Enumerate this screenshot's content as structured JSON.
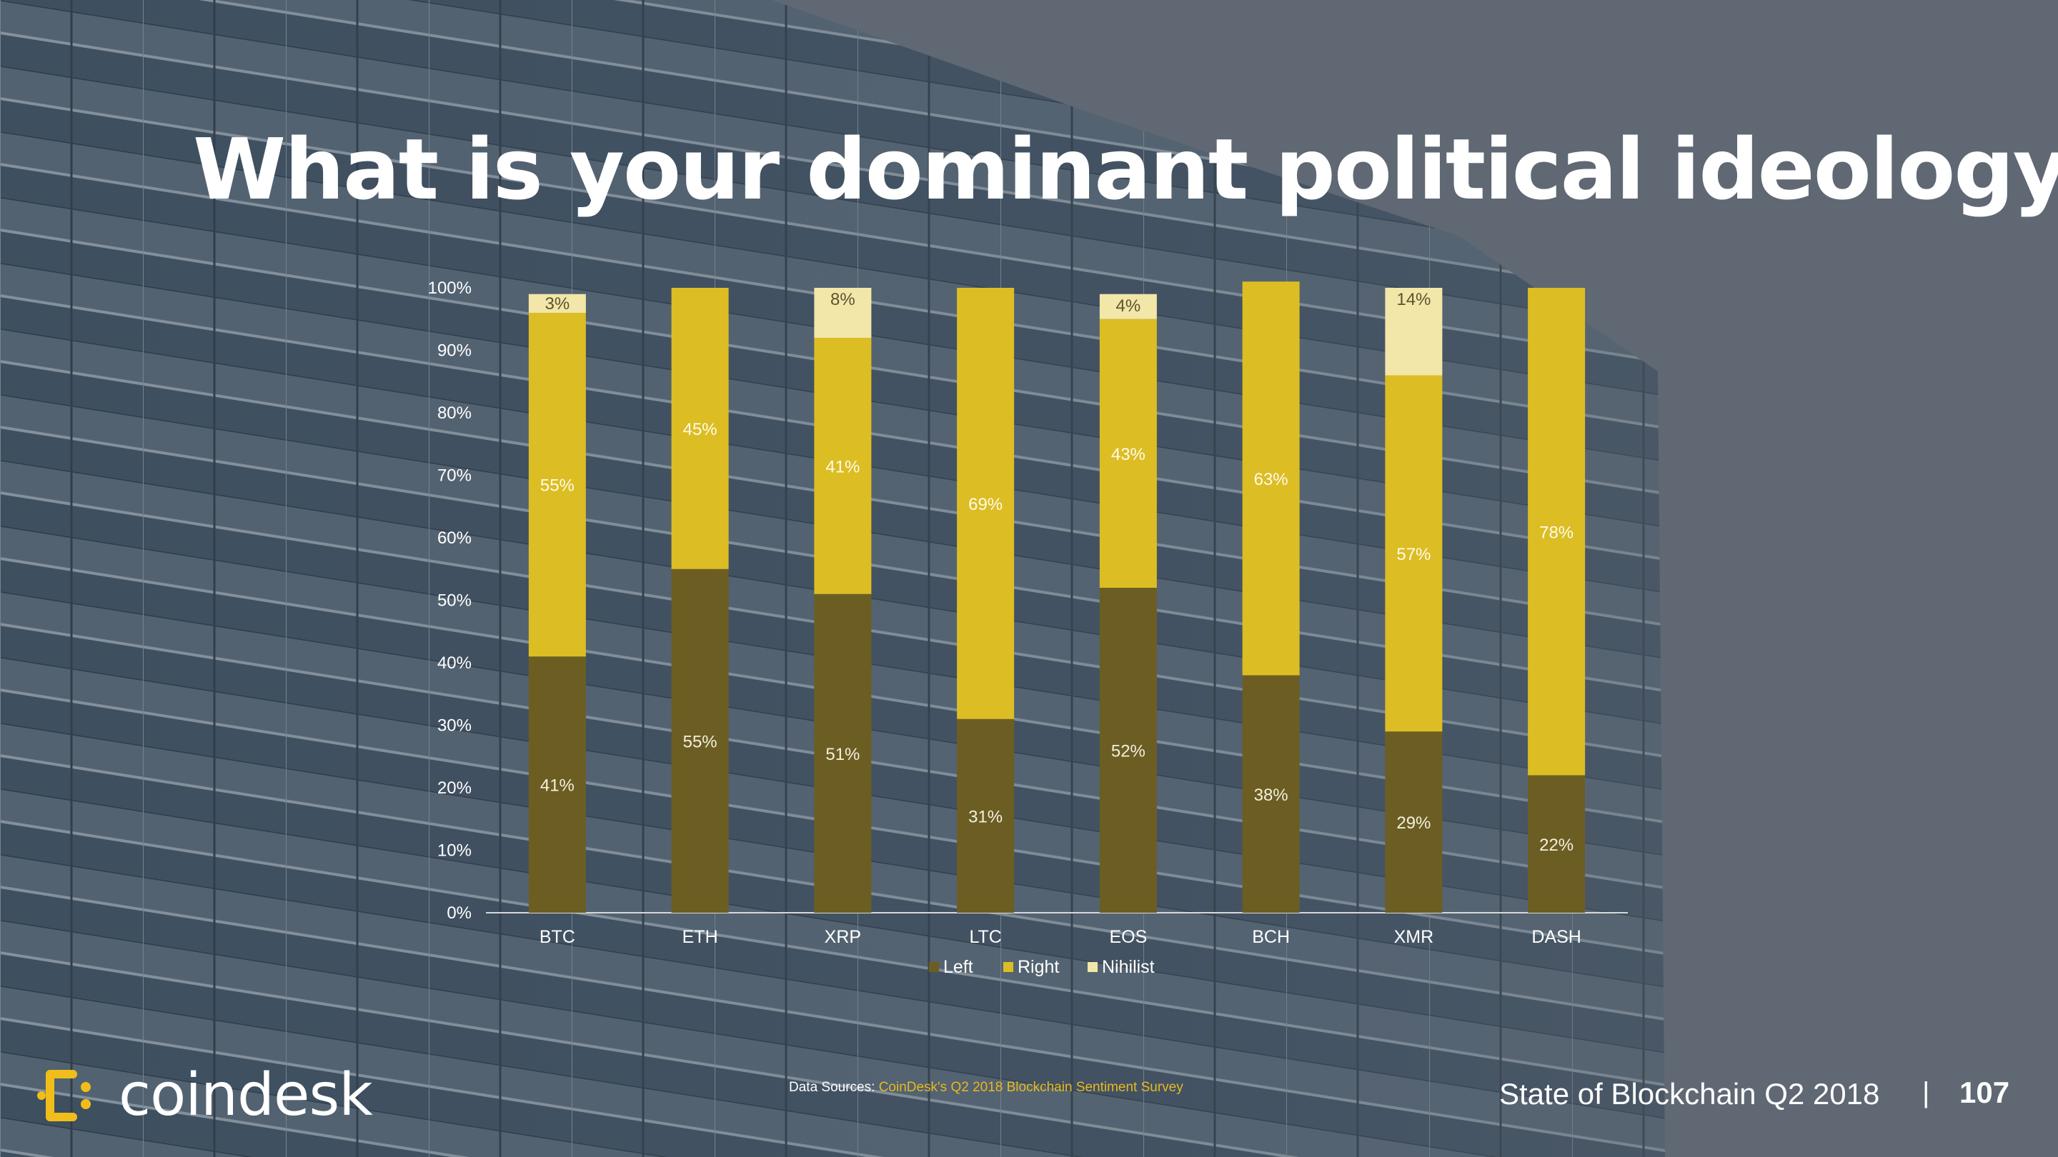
{
  "title": "What is your dominant political ideology",
  "title_mark": "?",
  "colors": {
    "left": "#6c5e22",
    "right": "#dcbd24",
    "nihilist": "#f2e6a8",
    "accent": "#f0bd1a",
    "background": "#5f6873"
  },
  "chart_data": {
    "type": "bar",
    "stacked": true,
    "categories": [
      "BTC",
      "ETH",
      "XRP",
      "LTC",
      "EOS",
      "BCH",
      "XMR",
      "DASH"
    ],
    "series": [
      {
        "name": "Left",
        "values": [
          41,
          55,
          51,
          31,
          52,
          38,
          29,
          22
        ]
      },
      {
        "name": "Right",
        "values": [
          55,
          45,
          41,
          69,
          43,
          63,
          57,
          78
        ]
      },
      {
        "name": "Nihilist",
        "values": [
          3,
          0,
          8,
          0,
          4,
          0,
          14,
          0
        ]
      }
    ],
    "y_ticks": [
      "0%",
      "10%",
      "20%",
      "30%",
      "40%",
      "50%",
      "60%",
      "70%",
      "80%",
      "90%",
      "100%"
    ],
    "ylim": [
      0,
      100
    ],
    "value_suffix": "%",
    "legend_position": "bottom",
    "grid": false
  },
  "footer": {
    "logo_text": "coindesk",
    "source_label": "Data Sources:",
    "source_name": "CoinDesk's Q2 2018 Blockchain Sentiment Survey",
    "report_title": "State of Blockchain Q2 2018",
    "separator": "|",
    "page_number": "107"
  }
}
